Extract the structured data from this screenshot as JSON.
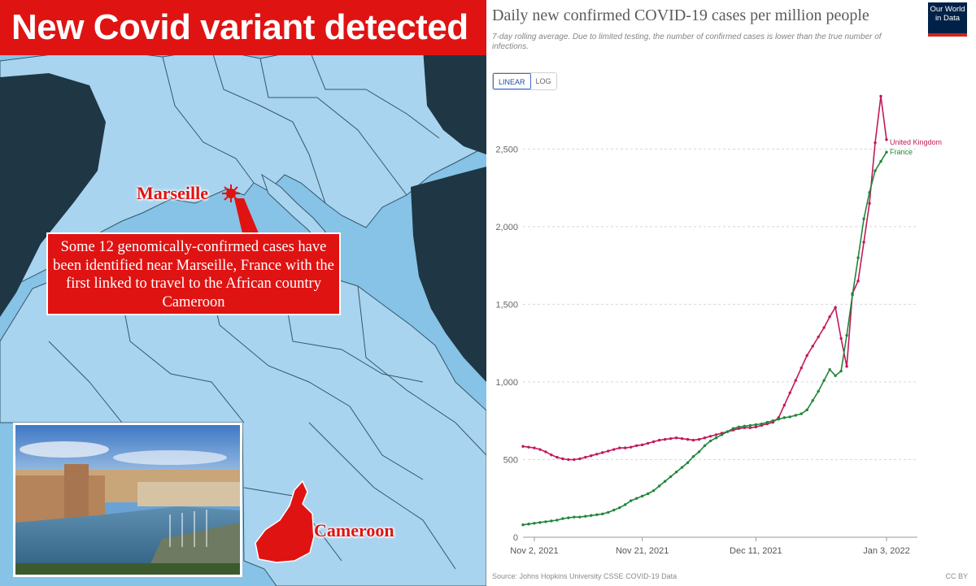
{
  "headline": "New Covid variant detected",
  "map": {
    "marseille_label": "Marseille",
    "cameroon_label": "Cameroon",
    "callout": "Some 12 genomically-confirmed cases have been identified near Marseille, France with the first linked to travel to the African country Cameroon",
    "colors": {
      "sea": "#86c3e6",
      "land": "#1f3644",
      "highlight": "#e01313"
    }
  },
  "chart": {
    "title": "Daily new confirmed COVID-19 cases per million people",
    "subtitle": "7-day rolling average. Due to limited testing, the number of confirmed cases is lower than the true number of infections.",
    "logo": [
      "Our World",
      "in Data"
    ],
    "scale_toggle": {
      "linear": "LINEAR",
      "log": "LOG",
      "selected": "LINEAR"
    },
    "source": "Source: Johns Hopkins University CSSE COVID-19 Data",
    "license": "CC BY"
  },
  "chart_data": {
    "type": "line",
    "title": "Daily new confirmed COVID-19 cases per million people",
    "x_start": "Oct 31, 2021",
    "x_end": "Jan 3, 2022",
    "xticks": [
      {
        "label": "Nov 2, 2021",
        "day": 2
      },
      {
        "label": "Nov 21, 2021",
        "day": 21
      },
      {
        "label": "Dec 11, 2021",
        "day": 41
      },
      {
        "label": "Jan 3, 2022",
        "day": 64
      }
    ],
    "ylim": [
      0,
      2800
    ],
    "yticks": [
      0,
      500,
      1000,
      1500,
      2000,
      2500
    ],
    "ytick_labels": [
      "0",
      "500",
      "1,000",
      "1,500",
      "2,000",
      "2,500"
    ],
    "grid": "horizontal dashed",
    "series": [
      {
        "name": "United Kingdom",
        "color": "#c2185b",
        "values": [
          585,
          580,
          575,
          565,
          550,
          530,
          515,
          505,
          500,
          500,
          505,
          515,
          525,
          535,
          545,
          555,
          565,
          575,
          575,
          580,
          590,
          595,
          605,
          615,
          625,
          630,
          635,
          640,
          635,
          630,
          625,
          630,
          640,
          650,
          660,
          670,
          680,
          690,
          700,
          705,
          705,
          710,
          720,
          730,
          740,
          770,
          850,
          930,
          1010,
          1090,
          1170,
          1230,
          1290,
          1350,
          1420,
          1480,
          1280,
          1100,
          1570,
          1650,
          1900,
          2150,
          2540,
          2840,
          2560
        ]
      },
      {
        "name": "France",
        "color": "#22863a",
        "values": [
          80,
          85,
          90,
          95,
          100,
          105,
          110,
          120,
          125,
          130,
          130,
          135,
          140,
          145,
          150,
          160,
          175,
          190,
          210,
          235,
          250,
          265,
          280,
          300,
          330,
          360,
          390,
          420,
          450,
          480,
          520,
          550,
          590,
          620,
          640,
          660,
          680,
          700,
          710,
          715,
          720,
          725,
          730,
          740,
          750,
          760,
          770,
          775,
          785,
          795,
          820,
          880,
          940,
          1010,
          1080,
          1040,
          1070,
          1300,
          1560,
          1800,
          2050,
          2220,
          2360,
          2420,
          2480
        ]
      }
    ]
  }
}
